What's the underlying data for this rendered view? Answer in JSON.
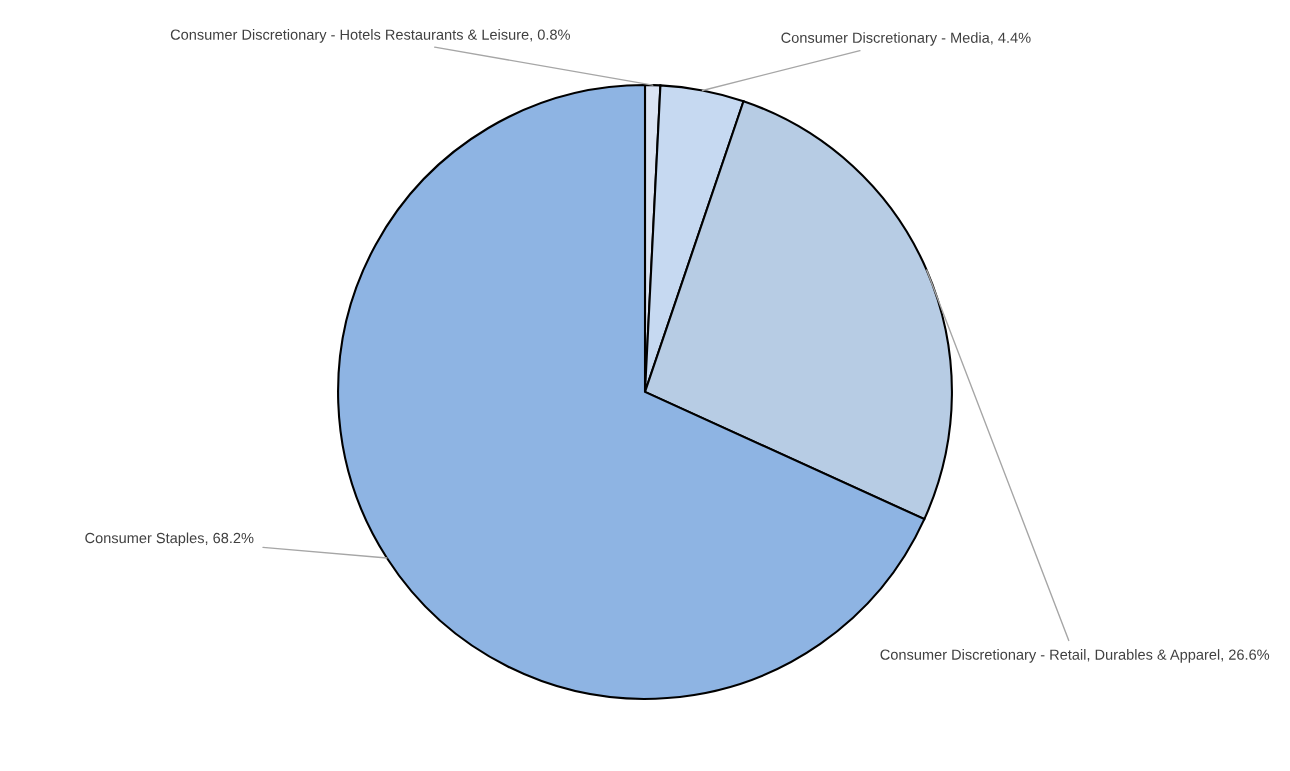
{
  "chart_data": {
    "type": "pie",
    "categories": [
      "Consumer Discretionary - Hotels Restaurants & Leisure",
      "Consumer Discretionary - Media",
      "Consumer Discretionary - Retail, Durables & Apparel",
      "Consumer Staples"
    ],
    "values": [
      0.8,
      4.4,
      26.6,
      68.2
    ],
    "value_labels": [
      "0.8%",
      "4.4%",
      "26.6%",
      "68.2%"
    ],
    "colors": [
      "#dae3f3",
      "#c6d9f1",
      "#b7cce4",
      "#8eb4e3"
    ],
    "legend": false
  }
}
